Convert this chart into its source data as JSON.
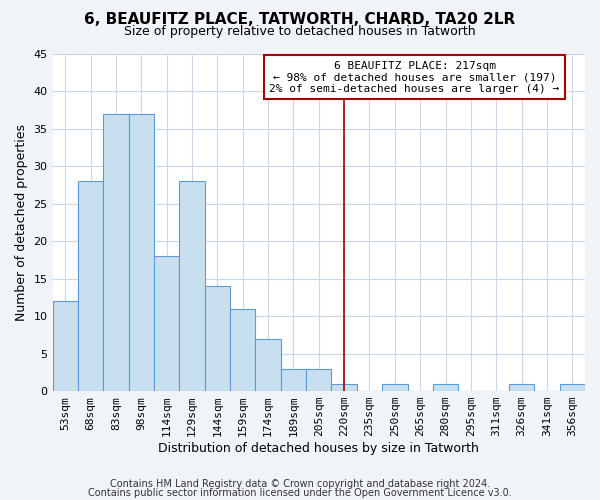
{
  "title": "6, BEAUFITZ PLACE, TATWORTH, CHARD, TA20 2LR",
  "subtitle": "Size of property relative to detached houses in Tatworth",
  "xlabel": "Distribution of detached houses by size in Tatworth",
  "ylabel": "Number of detached properties",
  "bar_labels": [
    "53sqm",
    "68sqm",
    "83sqm",
    "98sqm",
    "114sqm",
    "129sqm",
    "144sqm",
    "159sqm",
    "174sqm",
    "189sqm",
    "205sqm",
    "220sqm",
    "235sqm",
    "250sqm",
    "265sqm",
    "280sqm",
    "295sqm",
    "311sqm",
    "326sqm",
    "341sqm",
    "356sqm"
  ],
  "bar_values": [
    12,
    28,
    37,
    37,
    18,
    28,
    14,
    11,
    7,
    3,
    3,
    1,
    0,
    1,
    0,
    1,
    0,
    0,
    1,
    0,
    1
  ],
  "bar_color": "#c8dff0",
  "bar_edge_color": "#5b9bd5",
  "ylim": [
    0,
    45
  ],
  "yticks": [
    0,
    5,
    10,
    15,
    20,
    25,
    30,
    35,
    40,
    45
  ],
  "vline_x": 11.0,
  "vline_color": "#aa0000",
  "annotation_title": "6 BEAUFITZ PLACE: 217sqm",
  "annotation_line1": "← 98% of detached houses are smaller (197)",
  "annotation_line2": "2% of semi-detached houses are larger (4) →",
  "footer1": "Contains HM Land Registry data © Crown copyright and database right 2024.",
  "footer2": "Contains public sector information licensed under the Open Government Licence v3.0.",
  "plot_bg_color": "#ffffff",
  "fig_bg_color": "#f0f4f8",
  "grid_color": "#c8d8e8",
  "title_fontsize": 11,
  "subtitle_fontsize": 9,
  "axis_label_fontsize": 9,
  "tick_fontsize": 8,
  "annotation_fontsize": 8,
  "footer_fontsize": 7
}
